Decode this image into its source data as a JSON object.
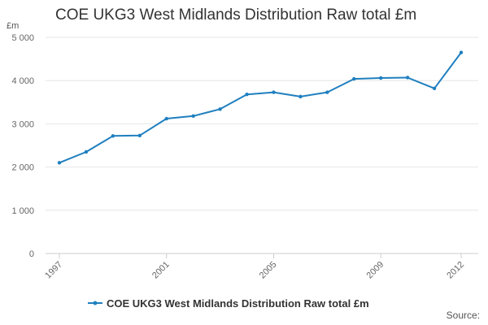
{
  "chart_data": {
    "type": "line",
    "title": "COE UKG3 West Midlands Distribution Raw total £m",
    "ylabel": "£m",
    "xlabel": "",
    "source": "Source:",
    "ylim": [
      0,
      5000
    ],
    "yticks": [
      0,
      1000,
      2000,
      3000,
      4000,
      5000
    ],
    "ytick_labels": [
      "0",
      "1 000",
      "2 000",
      "3 000",
      "4 000",
      "5 000"
    ],
    "xticks": [
      1997,
      2001,
      2005,
      2009,
      2012
    ],
    "grid": true,
    "legend": "bottom",
    "x": [
      1997,
      1998,
      1999,
      2000,
      2001,
      2002,
      2003,
      2004,
      2005,
      2006,
      2007,
      2008,
      2009,
      2010,
      2011,
      2012
    ],
    "series": [
      {
        "name": "COE UKG3 West Midlands Distribution Raw total £m",
        "color": "#1f7fbf",
        "values": [
          2100,
          2350,
          2720,
          2730,
          3120,
          3180,
          3340,
          3680,
          3730,
          3630,
          3730,
          4040,
          4060,
          4070,
          3820,
          4650
        ]
      }
    ]
  }
}
